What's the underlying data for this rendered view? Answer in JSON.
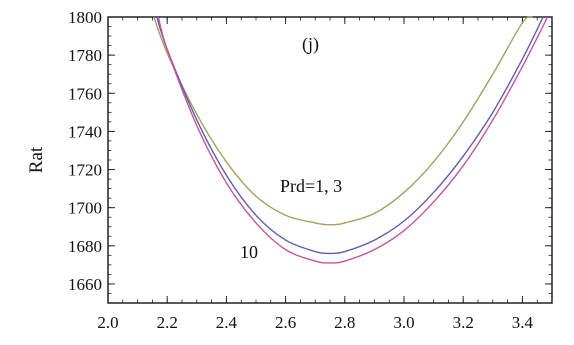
{
  "chart_data": {
    "type": "line",
    "title": "",
    "panel_label": "(j)",
    "xlabel": "",
    "ylabel": "Rat",
    "xlim": [
      2.0,
      3.5
    ],
    "ylim": [
      1650,
      1800
    ],
    "x_ticks": [
      "2.0",
      "2.2",
      "2.4",
      "2.6",
      "2.8",
      "3.0",
      "3.2",
      "3.4"
    ],
    "y_ticks": [
      "1660",
      "1680",
      "1700",
      "1720",
      "1740",
      "1760",
      "1780",
      "1800"
    ],
    "annotations": [
      {
        "text": "Prd=1, 3"
      },
      {
        "text": "10"
      }
    ],
    "series": [
      {
        "color": "#a8a060",
        "x": [
          2.155,
          2.2,
          2.3,
          2.4,
          2.5,
          2.6,
          2.7,
          2.75,
          2.8,
          2.9,
          3.0,
          3.1,
          3.2,
          3.3,
          3.4,
          3.435
        ],
        "y": [
          1800,
          1781,
          1749,
          1724,
          1706,
          1696,
          1692,
          1691,
          1692,
          1697,
          1708,
          1724,
          1745,
          1770,
          1797,
          1800
        ]
      },
      {
        "color": "#5a5fb0",
        "x": [
          2.165,
          2.2,
          2.3,
          2.4,
          2.5,
          2.6,
          2.7,
          2.75,
          2.8,
          2.9,
          3.0,
          3.1,
          3.2,
          3.3,
          3.4,
          3.47
        ],
        "y": [
          1800,
          1783,
          1746,
          1717,
          1696,
          1683,
          1677,
          1676,
          1677,
          1683,
          1693,
          1708,
          1727,
          1750,
          1778,
          1800
        ]
      },
      {
        "color": "#c8549a",
        "x": [
          2.17,
          2.2,
          2.3,
          2.4,
          2.5,
          2.6,
          2.7,
          2.75,
          2.8,
          2.9,
          3.0,
          3.1,
          3.2,
          3.3,
          3.4,
          3.485
        ],
        "y": [
          1800,
          1783,
          1743,
          1713,
          1692,
          1678,
          1672,
          1671,
          1672,
          1678,
          1688,
          1703,
          1722,
          1746,
          1774,
          1800
        ]
      }
    ]
  }
}
